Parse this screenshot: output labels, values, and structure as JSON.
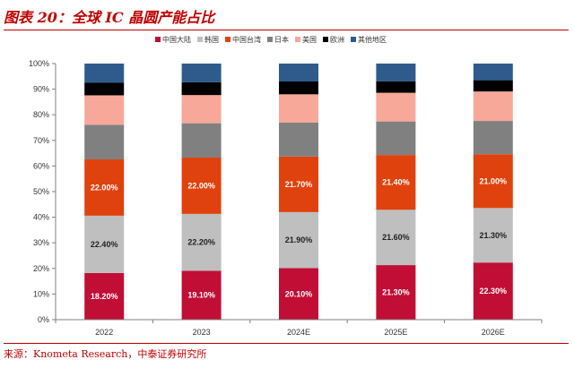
{
  "figure": {
    "title": "图表 20：全球 IC 晶圆产能占比",
    "source": "来源：Knometa Research，中泰证券研究所"
  },
  "chart_data": {
    "type": "bar",
    "stacked": true,
    "title": "图表 20：全球 IC 晶圆产能占比",
    "xlabel": "",
    "ylabel": "",
    "ylim": [
      0,
      100
    ],
    "yticks": [
      "0%",
      "10%",
      "20%",
      "30%",
      "40%",
      "50%",
      "60%",
      "70%",
      "80%",
      "90%",
      "100%"
    ],
    "categories": [
      "2022",
      "2023",
      "2024E",
      "2025E",
      "2026E"
    ],
    "legend_position": "top",
    "grid": false,
    "series": [
      {
        "name": "中国大陆",
        "color": "#c00e35",
        "values": [
          18.2,
          19.1,
          20.1,
          21.3,
          22.3
        ],
        "labels": [
          "18.20%",
          "19.10%",
          "20.10%",
          "21.30%",
          "22.30%"
        ],
        "label_color": "#ffffff"
      },
      {
        "name": "韩国",
        "color": "#bfbfbf",
        "values": [
          22.4,
          22.2,
          21.9,
          21.6,
          21.3
        ],
        "labels": [
          "22.40%",
          "22.20%",
          "21.90%",
          "21.60%",
          "21.30%"
        ],
        "label_color": "#222222"
      },
      {
        "name": "中国台湾",
        "color": "#e0420e",
        "values": [
          22.0,
          22.0,
          21.7,
          21.4,
          21.0
        ],
        "labels": [
          "22.00%",
          "22.00%",
          "21.70%",
          "21.40%",
          "21.00%"
        ],
        "label_color": "#ffffff"
      },
      {
        "name": "日本",
        "color": "#808080",
        "values": [
          13.5,
          13.4,
          13.3,
          13.1,
          13.0
        ]
      },
      {
        "name": "美国",
        "color": "#f7a899",
        "values": [
          11.5,
          11.0,
          11.0,
          11.2,
          11.5
        ]
      },
      {
        "name": "欧洲",
        "color": "#000000",
        "values": [
          5.0,
          5.0,
          5.0,
          4.5,
          4.4
        ]
      },
      {
        "name": "其他地区",
        "color": "#2e5b8c",
        "values": [
          7.4,
          7.3,
          7.0,
          6.9,
          6.5
        ]
      }
    ]
  }
}
